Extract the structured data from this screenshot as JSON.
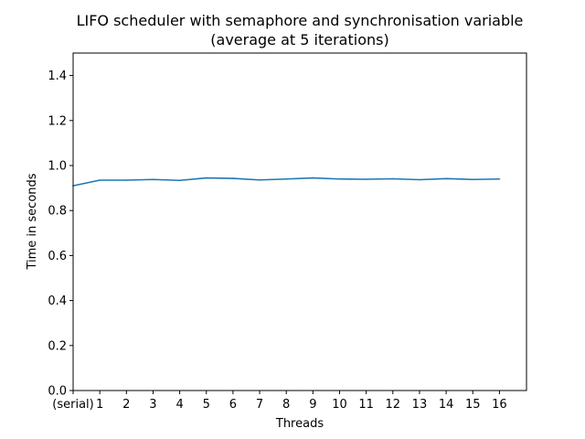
{
  "chart_data": {
    "type": "line",
    "title_line1": "LIFO scheduler with semaphore and synchronisation variable",
    "title_line2": "(average at 5 iterations)",
    "xlabel": "Threads",
    "ylabel": "Time in seconds",
    "categories": [
      "(serial)",
      "1",
      "2",
      "3",
      "4",
      "5",
      "6",
      "7",
      "8",
      "9",
      "10",
      "11",
      "12",
      "13",
      "14",
      "15",
      "16"
    ],
    "ylim": [
      0,
      1.5
    ],
    "yticks": [
      "0.0",
      "0.2",
      "0.4",
      "0.6",
      "0.8",
      "1.0",
      "1.2",
      "1.4"
    ],
    "series": [
      {
        "color": "#1f77b4",
        "values": [
          0.91,
          0.935,
          0.935,
          0.938,
          0.934,
          0.945,
          0.943,
          0.936,
          0.94,
          0.945,
          0.94,
          0.939,
          0.941,
          0.937,
          0.942,
          0.938,
          0.94
        ]
      }
    ],
    "grid": false,
    "legend": "none"
  }
}
